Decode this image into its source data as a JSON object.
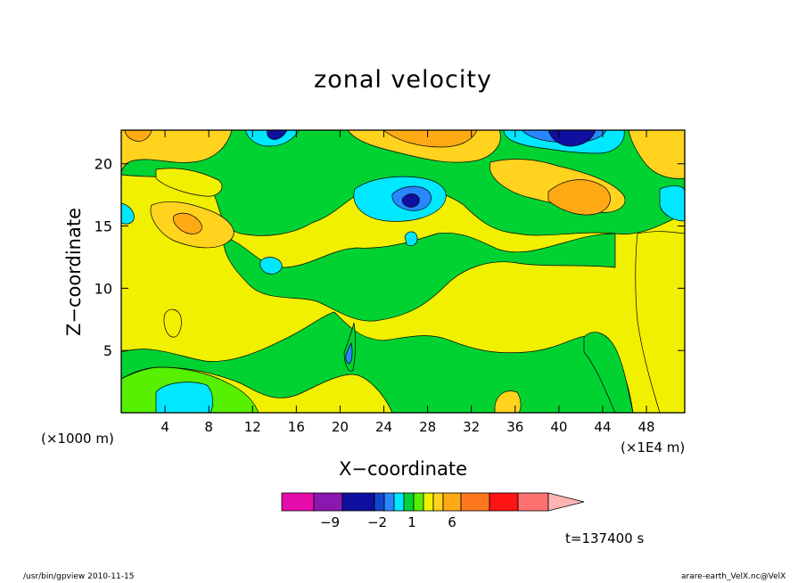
{
  "chart_data": {
    "type": "heatmap",
    "title": "zonal velocity",
    "xlabel": "X−coordinate",
    "ylabel": "Z−coordinate",
    "x_unit_label": "(×1000 m)",
    "x_unit_label2": "(×1E4 m)",
    "x_ticks": [
      4,
      8,
      12,
      16,
      20,
      24,
      28,
      32,
      36,
      40,
      44,
      48
    ],
    "y_ticks": [
      5,
      10,
      15,
      20
    ],
    "xlim": [
      0,
      51.5
    ],
    "ylim": [
      0,
      22.7
    ],
    "colorbar": {
      "colors": [
        "#e60dac",
        "#8c16b0",
        "#0f0fa0",
        "#1046cc",
        "#2887ff",
        "#00e8ff",
        "#00d232",
        "#56f000",
        "#f0f000",
        "#ffd31e",
        "#ffaa14",
        "#ff781e",
        "#ff1414",
        "#ff7070",
        "#ffb4b4"
      ],
      "tick_labels": [
        "−9",
        "−2",
        "1",
        "6"
      ]
    },
    "contour_regions": [
      {
        "level": "pale-yellow",
        "color": "#f0f000"
      },
      {
        "level": "light-orange",
        "color": "#ffd31e"
      },
      {
        "level": "orange",
        "color": "#ffaa14"
      },
      {
        "level": "green",
        "color": "#00d232"
      },
      {
        "level": "light-green",
        "color": "#56f000"
      },
      {
        "level": "cyan",
        "color": "#00e8ff"
      },
      {
        "level": "light-blue",
        "color": "#2887ff"
      },
      {
        "level": "dark-blue",
        "color": "#0f0fa0"
      }
    ]
  },
  "time_label": "t=137400 s",
  "footer": {
    "left": "/usr/bin/gpview   2010-11-15",
    "right": "arare-earth_VelX.nc@VelX"
  }
}
